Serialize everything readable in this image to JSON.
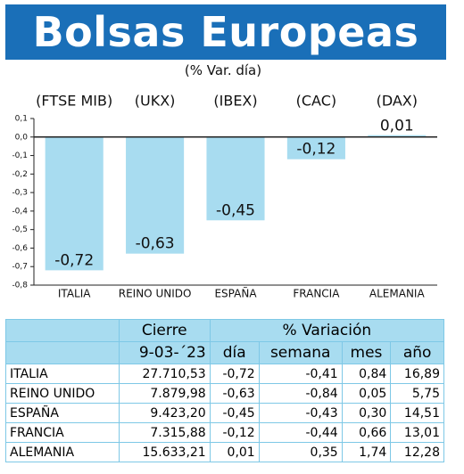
{
  "chart_data": {
    "type": "bar",
    "title": "Bolsas Europeas",
    "subtitle": "(% Var. día)",
    "categories": [
      "ITALIA",
      "REINO UNIDO",
      "ESPAÑA",
      "FRANCIA",
      "ALEMANIA"
    ],
    "index_labels": [
      "(FTSE MIB)",
      "(UKX)",
      "(IBEX)",
      "(CAC)",
      "(DAX)"
    ],
    "values": [
      -0.72,
      -0.63,
      -0.45,
      -0.12,
      0.01
    ],
    "value_labels": [
      "-0,72",
      "-0,63",
      "-0,45",
      "-0,12",
      "0,01"
    ],
    "color": "#a8dcf0",
    "ylim": [
      -0.8,
      0.1
    ],
    "yticks": [
      {
        "value": 0.1,
        "label": "0,1"
      },
      {
        "value": 0,
        "label": "0,0"
      },
      {
        "value": -0.1,
        "label": "-0,1"
      },
      {
        "value": -0.2,
        "label": "-0,2"
      },
      {
        "value": -0.3,
        "label": "-0,3"
      },
      {
        "value": -0.4,
        "label": "-0,4"
      },
      {
        "value": -0.5,
        "label": "-0,5"
      },
      {
        "value": -0.6,
        "label": "-0,6"
      },
      {
        "value": -0.7,
        "label": "-0,7"
      },
      {
        "value": -0.8,
        "label": "-0,8"
      }
    ]
  },
  "table": {
    "header": {
      "cierre": "Cierre",
      "variacion": "% Variación",
      "date": "9-03-´23",
      "cols": [
        "día",
        "semana",
        "mes",
        "año"
      ]
    },
    "rows": [
      [
        "ITALIA",
        "27.710,53",
        "-0,72",
        "-0,41",
        "0,84",
        "16,89"
      ],
      [
        "REINO UNIDO",
        "7.879,98",
        "-0,63",
        "-0,84",
        "0,05",
        "5,75"
      ],
      [
        "ESPAÑA",
        "9.423,20",
        "-0,45",
        "-0,43",
        "0,30",
        "14,51"
      ],
      [
        "FRANCIA",
        "7.315,88",
        "-0,12",
        "-0,44",
        "0,66",
        "13,01"
      ],
      [
        "ALEMANIA",
        "15.633,21",
        "0,01",
        "0,35",
        "1,74",
        "12,28"
      ]
    ]
  }
}
